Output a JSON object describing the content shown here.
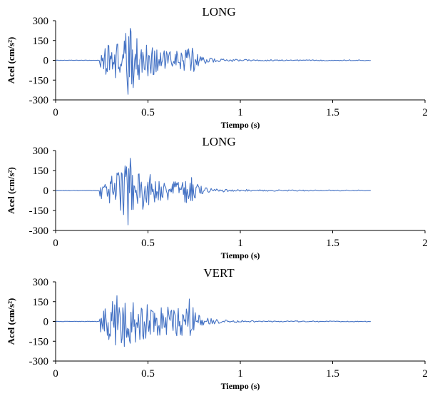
{
  "chart_data": [
    {
      "type": "line",
      "title": "LONG",
      "xlabel": "Tiempo (s)",
      "ylabel": "Acel (cm/s²)",
      "xlim": [
        0,
        2
      ],
      "ylim": [
        -300,
        300
      ],
      "xticks": [
        "0",
        "0.5",
        "1",
        "1.5",
        "2"
      ],
      "yticks": [
        "300",
        "150",
        "0",
        "-150",
        "-300"
      ],
      "grid": false,
      "color": "#4472C4",
      "duration": 1.71,
      "signal_onset": 0.24,
      "peak_positive": 242,
      "peak_negative": -258,
      "dense_until": 0.8,
      "envelope_t": [
        0.0,
        0.23,
        0.24,
        0.26,
        0.3,
        0.35,
        0.4,
        0.45,
        0.5,
        0.55,
        0.6,
        0.65,
        0.7,
        0.74,
        0.78,
        0.82,
        0.9,
        1.0,
        1.2,
        1.5,
        1.71
      ],
      "envelope_amp": [
        0,
        0,
        70,
        110,
        120,
        160,
        250,
        150,
        140,
        90,
        70,
        70,
        90,
        100,
        40,
        20,
        10,
        7,
        4,
        3,
        2
      ]
    },
    {
      "type": "line",
      "title": "LONG",
      "xlabel": "Tiempo (s)",
      "ylabel": "Acel (cm/s²)",
      "xlim": [
        0,
        2
      ],
      "ylim": [
        -300,
        300
      ],
      "xticks": [
        "0",
        "0.5",
        "1",
        "1.5",
        "2"
      ],
      "yticks": [
        "300",
        "150",
        "0",
        "-150",
        "-300"
      ],
      "grid": false,
      "color": "#4472C4",
      "duration": 1.71,
      "signal_onset": 0.24,
      "peak_positive": 242,
      "peak_negative": -258,
      "dense_until": 0.8,
      "envelope_t": [
        0.0,
        0.23,
        0.24,
        0.26,
        0.3,
        0.35,
        0.4,
        0.45,
        0.5,
        0.55,
        0.6,
        0.65,
        0.7,
        0.74,
        0.78,
        0.82,
        0.9,
        1.0,
        1.2,
        1.5,
        1.71
      ],
      "envelope_amp": [
        0,
        0,
        70,
        110,
        120,
        160,
        250,
        150,
        140,
        90,
        70,
        70,
        90,
        100,
        40,
        20,
        10,
        7,
        4,
        3,
        2
      ]
    },
    {
      "type": "line",
      "title": "VERT",
      "xlabel": "Tiempo (s)",
      "ylabel": "Acel (cm/s²)",
      "xlim": [
        0,
        2
      ],
      "ylim": [
        -300,
        300
      ],
      "xticks": [
        "0",
        "0.5",
        "1",
        "1.5",
        "2"
      ],
      "yticks": [
        "300",
        "150",
        "0",
        "-150",
        "-300"
      ],
      "grid": false,
      "color": "#4472C4",
      "duration": 1.71,
      "signal_onset": 0.24,
      "peak_positive": 195,
      "peak_negative": -190,
      "dense_until": 0.8,
      "envelope_t": [
        0.0,
        0.23,
        0.24,
        0.27,
        0.3,
        0.33,
        0.36,
        0.4,
        0.45,
        0.5,
        0.55,
        0.6,
        0.65,
        0.7,
        0.73,
        0.76,
        0.8,
        0.9,
        1.0,
        1.2,
        1.5,
        1.71
      ],
      "envelope_amp": [
        0,
        0,
        80,
        140,
        150,
        190,
        180,
        170,
        150,
        130,
        110,
        110,
        120,
        110,
        170,
        60,
        30,
        12,
        7,
        4,
        3,
        2
      ]
    }
  ]
}
